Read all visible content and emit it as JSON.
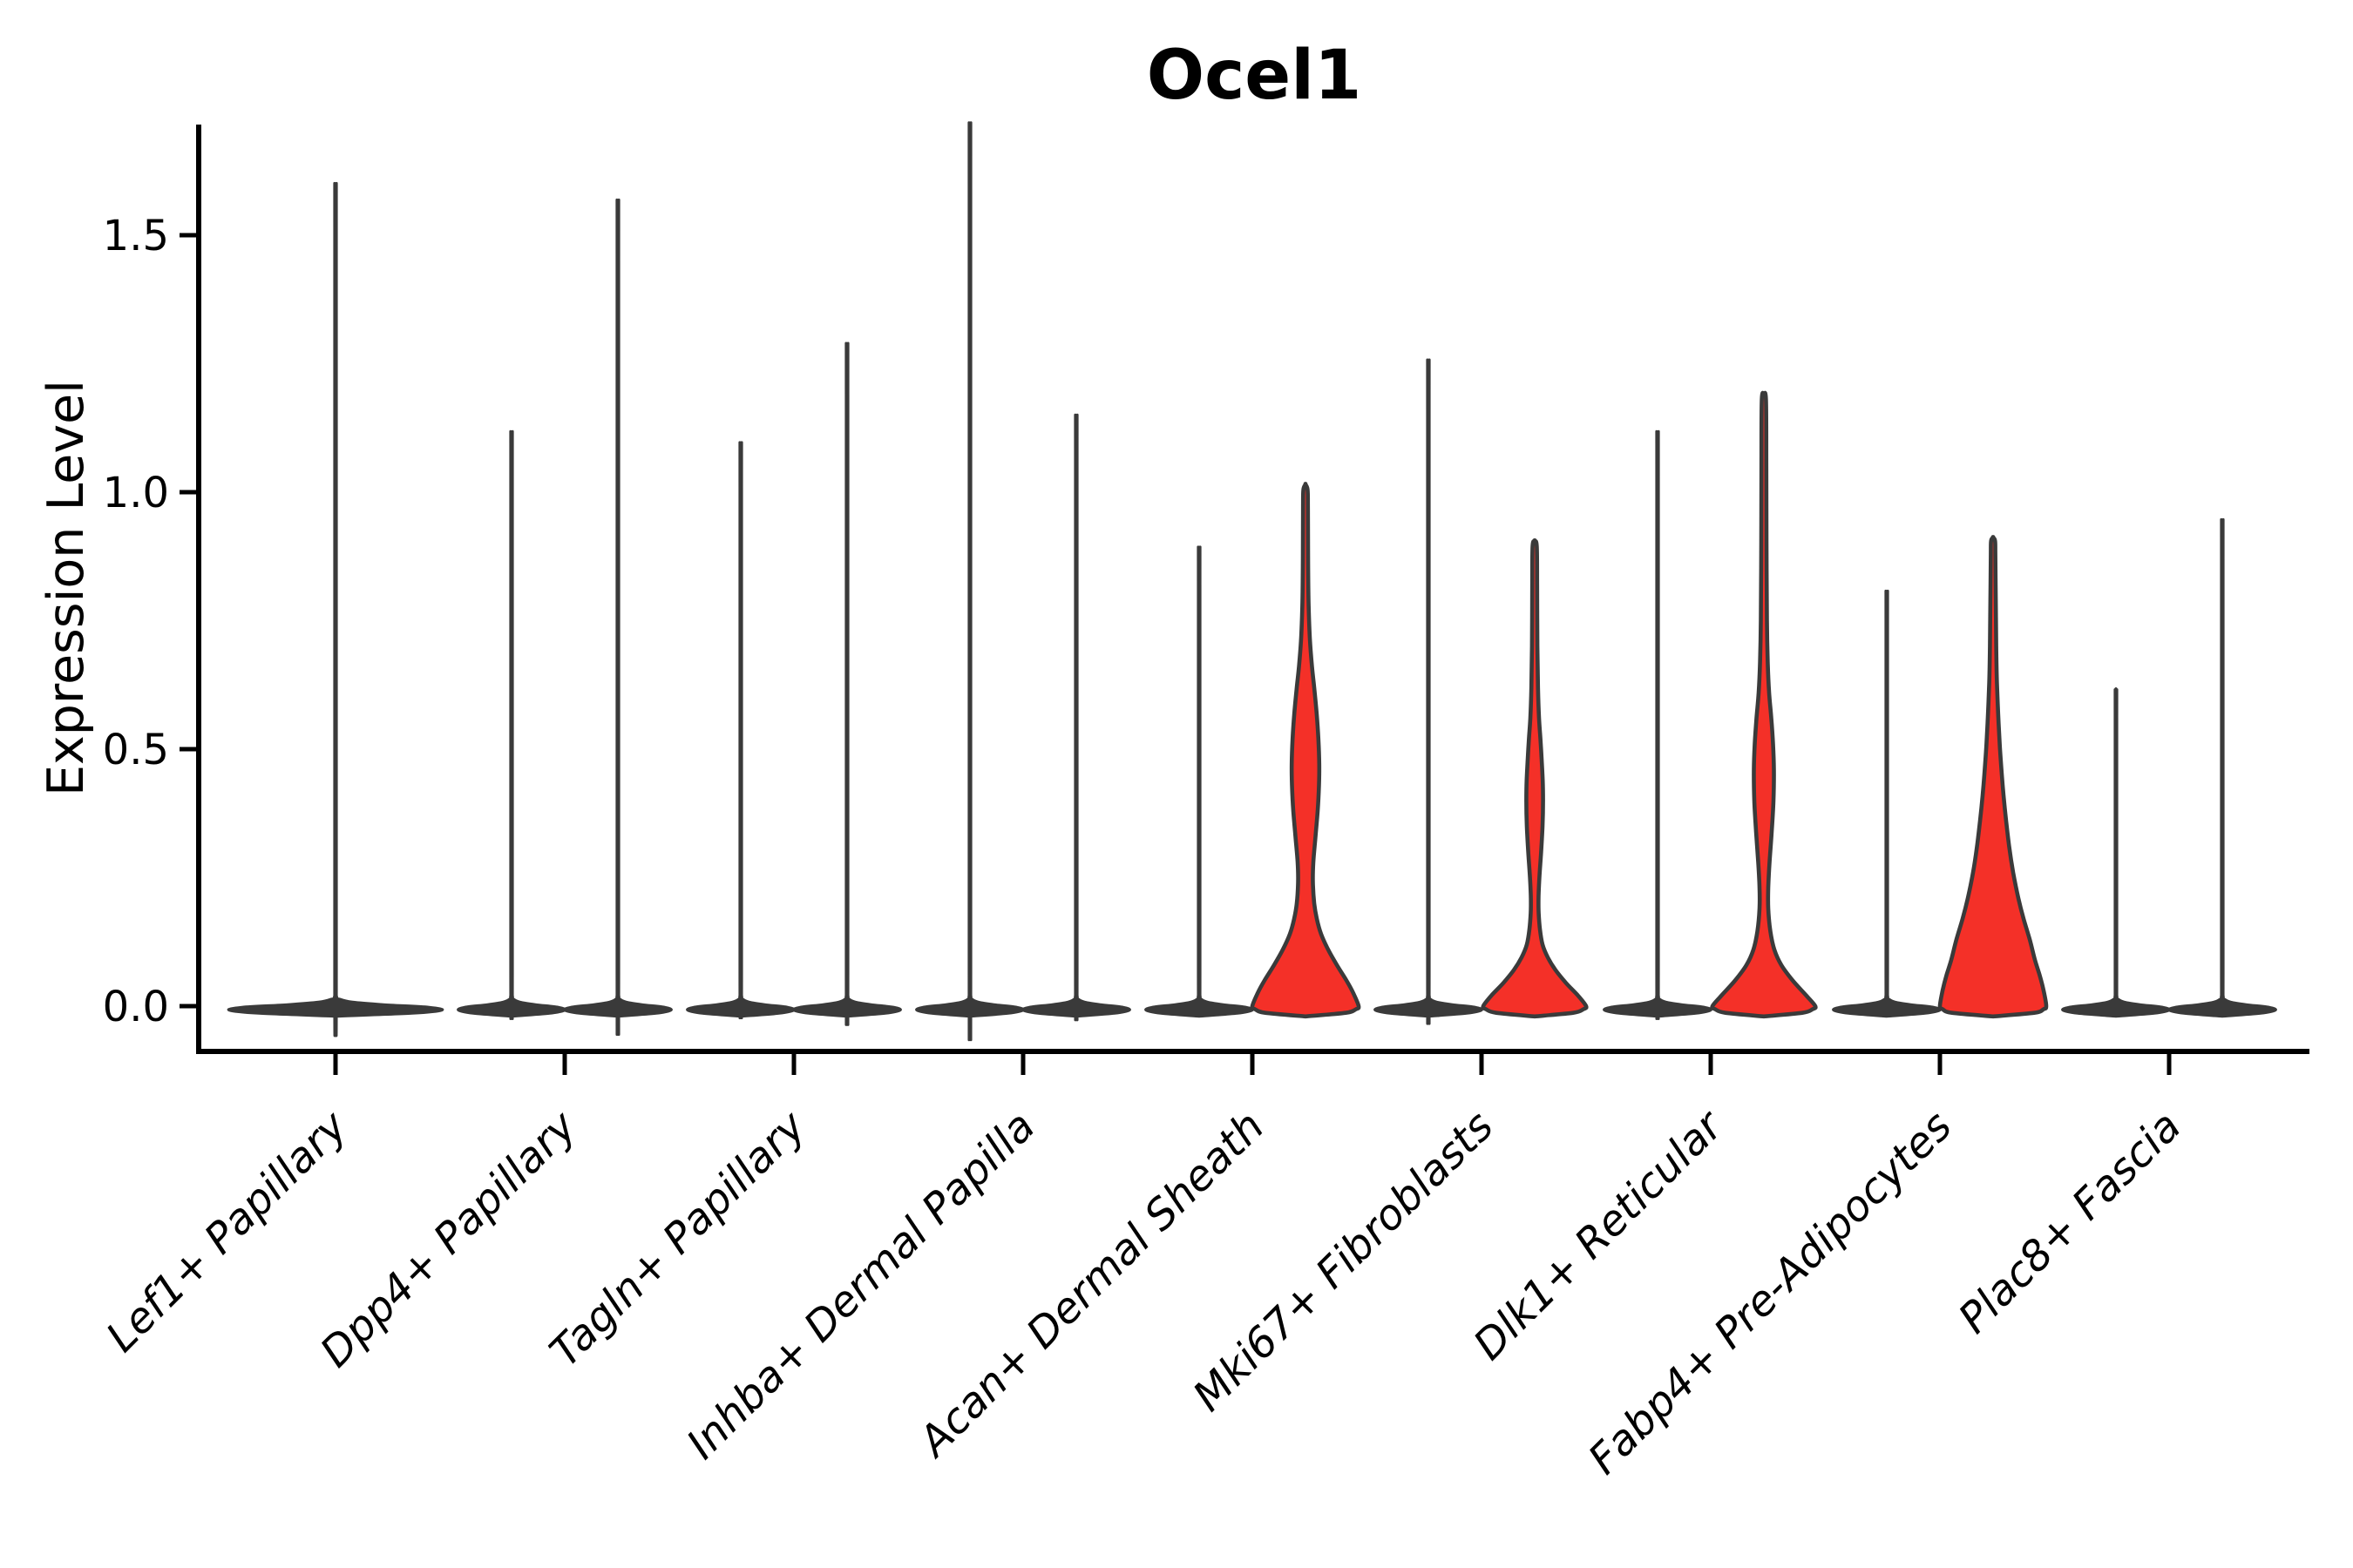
{
  "chart_data": {
    "type": "violin",
    "title": "Ocel1",
    "xlabel": "",
    "ylabel": "Expression Level",
    "ylim": [
      -0.09,
      1.71
    ],
    "grid": false,
    "legend": "none",
    "yticks": [
      {
        "value": 0.0,
        "label": "0.0"
      },
      {
        "value": 0.5,
        "label": "0.5"
      },
      {
        "value": 1.0,
        "label": "1.0"
      },
      {
        "value": 1.5,
        "label": "1.5"
      }
    ],
    "colors": {
      "axis": "#000000",
      "violin_outline": "#3a3a3a",
      "violin_dark_fill": "#3a3a3a",
      "highlight_fill": "#f43028",
      "background": "#ffffff",
      "text": "#000000"
    },
    "categories": [
      {
        "label": "Lef1+ Papillary",
        "violins": [
          {
            "side": "full",
            "max": 1.53,
            "fill": "dark"
          }
        ]
      },
      {
        "label": "Dpp4+ Papillary",
        "violins": [
          {
            "side": "left",
            "max": 1.08,
            "fill": "dark"
          },
          {
            "side": "right",
            "max": 1.5,
            "fill": "dark"
          }
        ]
      },
      {
        "label": "Tagln+ Papillary",
        "violins": [
          {
            "side": "left",
            "max": 1.06,
            "fill": "dark"
          },
          {
            "side": "right",
            "max": 1.24,
            "fill": "dark"
          }
        ]
      },
      {
        "label": "Inhba+ Dermal Papilla",
        "violins": [
          {
            "side": "left",
            "max": 1.64,
            "fill": "dark"
          },
          {
            "side": "right",
            "max": 1.11,
            "fill": "dark"
          }
        ]
      },
      {
        "label": "Acan+ Dermal Sheath",
        "violins": [
          {
            "side": "left",
            "max": 0.87,
            "fill": "dark"
          },
          {
            "side": "right",
            "max": 1.01,
            "fill": "red",
            "profile": "acan"
          }
        ]
      },
      {
        "label": "Mki67+ Fibroblasts",
        "violins": [
          {
            "side": "left",
            "max": 1.21,
            "fill": "dark"
          },
          {
            "side": "right",
            "max": 0.9,
            "fill": "red",
            "profile": "mki67"
          }
        ]
      },
      {
        "label": "Dlk1+ Reticular",
        "violins": [
          {
            "side": "left",
            "max": 1.08,
            "fill": "dark"
          },
          {
            "side": "right",
            "max": 1.19,
            "fill": "red",
            "profile": "dlk1"
          }
        ]
      },
      {
        "label": "Fabp4+ Pre-Adipocytes",
        "violins": [
          {
            "side": "left",
            "max": 0.79,
            "fill": "dark"
          },
          {
            "side": "right",
            "max": 0.91,
            "fill": "red",
            "profile": "fabp4"
          }
        ]
      },
      {
        "label": "Plac8+ Fascia",
        "violins": [
          {
            "side": "left",
            "max": 0.61,
            "fill": "dark"
          },
          {
            "side": "right",
            "max": 0.92,
            "fill": "dark"
          }
        ]
      }
    ],
    "profiles": {
      "acan": [
        [
          -0.02,
          0
        ],
        [
          -0.013,
          46
        ],
        [
          -0.006,
          58
        ],
        [
          0,
          61
        ],
        [
          0.025,
          55
        ],
        [
          0.05,
          47
        ],
        [
          0.08,
          36
        ],
        [
          0.11,
          26
        ],
        [
          0.14,
          18
        ],
        [
          0.17,
          13
        ],
        [
          0.2,
          10
        ],
        [
          0.24,
          8.5
        ],
        [
          0.28,
          9
        ],
        [
          0.33,
          11.5
        ],
        [
          0.38,
          14
        ],
        [
          0.43,
          15.5
        ],
        [
          0.47,
          15.8
        ],
        [
          0.52,
          14.8
        ],
        [
          0.57,
          12.8
        ],
        [
          0.62,
          10
        ],
        [
          0.66,
          7.5
        ],
        [
          0.71,
          5.2
        ],
        [
          0.78,
          3.6
        ],
        [
          0.87,
          3
        ],
        [
          0.97,
          2.8
        ],
        [
          1.005,
          2.4
        ],
        [
          1.015,
          0
        ]
      ],
      "mki67": [
        [
          -0.02,
          0
        ],
        [
          -0.013,
          44
        ],
        [
          -0.006,
          56
        ],
        [
          0,
          59
        ],
        [
          0.02,
          50
        ],
        [
          0.045,
          36
        ],
        [
          0.07,
          24
        ],
        [
          0.095,
          15
        ],
        [
          0.12,
          9
        ],
        [
          0.15,
          6
        ],
        [
          0.18,
          4.6
        ],
        [
          0.21,
          4.4
        ],
        [
          0.25,
          5.4
        ],
        [
          0.3,
          7.4
        ],
        [
          0.35,
          9
        ],
        [
          0.4,
          9.6
        ],
        [
          0.44,
          9.2
        ],
        [
          0.48,
          8
        ],
        [
          0.52,
          6.6
        ],
        [
          0.56,
          5
        ],
        [
          0.62,
          3.8
        ],
        [
          0.7,
          3.1
        ],
        [
          0.82,
          2.8
        ],
        [
          0.895,
          2.4
        ],
        [
          0.905,
          0
        ]
      ],
      "dlk1": [
        [
          -0.02,
          0
        ],
        [
          -0.013,
          44
        ],
        [
          -0.006,
          56
        ],
        [
          0,
          59
        ],
        [
          0.02,
          49
        ],
        [
          0.05,
          33
        ],
        [
          0.08,
          20
        ],
        [
          0.11,
          12
        ],
        [
          0.145,
          7.5
        ],
        [
          0.19,
          5
        ],
        [
          0.23,
          5
        ],
        [
          0.28,
          6.5
        ],
        [
          0.34,
          9
        ],
        [
          0.4,
          11
        ],
        [
          0.46,
          11.5
        ],
        [
          0.51,
          10.5
        ],
        [
          0.56,
          8.5
        ],
        [
          0.61,
          6
        ],
        [
          0.67,
          4.4
        ],
        [
          0.75,
          3.5
        ],
        [
          0.9,
          3
        ],
        [
          1.05,
          2.8
        ],
        [
          1.18,
          2.4
        ],
        [
          1.19,
          0
        ]
      ],
      "fabp4": [
        [
          -0.02,
          0
        ],
        [
          -0.013,
          47
        ],
        [
          -0.006,
          58
        ],
        [
          0,
          61
        ],
        [
          0.03,
          58
        ],
        [
          0.06,
          53.5
        ],
        [
          0.09,
          48
        ],
        [
          0.13,
          42
        ],
        [
          0.17,
          35
        ],
        [
          0.21,
          29
        ],
        [
          0.26,
          23
        ],
        [
          0.31,
          18.5
        ],
        [
          0.36,
          15
        ],
        [
          0.41,
          12
        ],
        [
          0.46,
          9.6
        ],
        [
          0.51,
          7.6
        ],
        [
          0.57,
          5.8
        ],
        [
          0.63,
          4.4
        ],
        [
          0.7,
          3.6
        ],
        [
          0.79,
          3.1
        ],
        [
          0.88,
          2.6
        ],
        [
          0.905,
          2.3
        ],
        [
          0.912,
          0
        ]
      ]
    }
  }
}
